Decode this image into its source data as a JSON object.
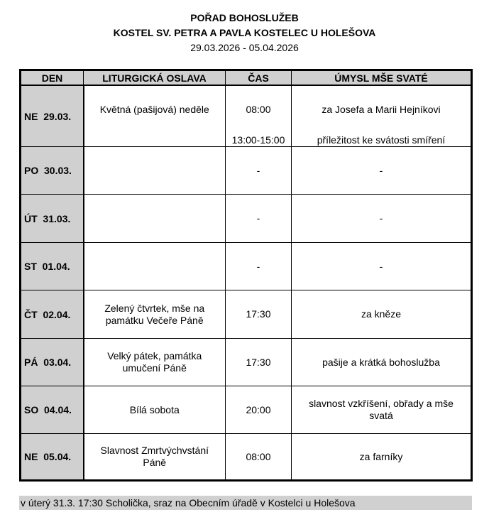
{
  "header": {
    "title": "POŘAD BOHOSLUŽEB",
    "subtitle": "KOSTEL SV. PETRA A PAVLA KOSTELEC U HOLEŠOVA",
    "dates": "29.03.2026 - 05.04.2026"
  },
  "table": {
    "columns": [
      "DEN",
      "LITURGICKÁ OSLAVA",
      "ČAS",
      "ÚMYSL MŠE SVATÉ"
    ],
    "rows": [
      {
        "day": "NE  29.03.",
        "celebration": [
          "Květná (pašijová) neděle"
        ],
        "time": [
          "08:00",
          "13:00-15:00"
        ],
        "intention": [
          "za Josefa a Marii Hejníkovi",
          "příležitost ke svátosti smíření"
        ]
      },
      {
        "day": "PO  30.03.",
        "celebration": [],
        "time": [
          "-"
        ],
        "intention": [
          "-"
        ]
      },
      {
        "day": "ÚT  31.03.",
        "celebration": [],
        "time": [
          "-"
        ],
        "intention": [
          "-"
        ]
      },
      {
        "day": "ST  01.04.",
        "celebration": [],
        "time": [
          "-"
        ],
        "intention": [
          "-"
        ]
      },
      {
        "day": "ČT  02.04.",
        "celebration": [
          "Zelený čtvrtek, mše na",
          "památku Večeře Páně"
        ],
        "time": [
          "17:30"
        ],
        "intention": [
          "za kněze"
        ]
      },
      {
        "day": "PÁ  03.04.",
        "celebration": [
          "Velký pátek, památka",
          "umučení Páně"
        ],
        "time": [
          "17:30"
        ],
        "intention": [
          "pašije a krátká bohoslužba"
        ]
      },
      {
        "day": "SO  04.04.",
        "celebration": [
          "Bílá sobota"
        ],
        "time": [
          "20:00"
        ],
        "intention": [
          "slavnost vzkříšení, obřady a mše",
          "svatá"
        ]
      },
      {
        "day": "NE  05.04.",
        "celebration": [
          "Slavnost Zmrtvýchvstání",
          "Páně"
        ],
        "time": [
          "08:00"
        ],
        "intention": [
          "za farníky"
        ]
      }
    ]
  },
  "footer": "v úterý 31.3. 17:30 Scholička,  sraz na Obecním úřadě v Kostelci u Holešova"
}
